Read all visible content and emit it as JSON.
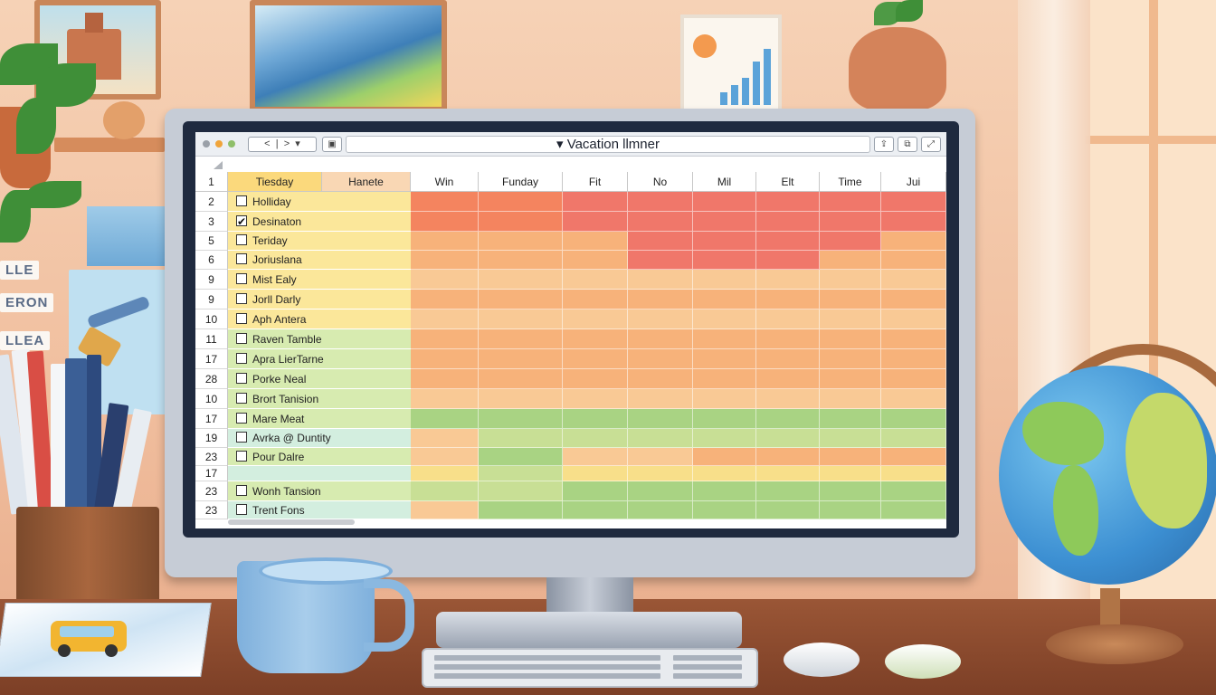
{
  "app": {
    "title": "Vacation llmner",
    "title_prefix": "▾"
  },
  "toolbar": {
    "back": "<",
    "divider": "|",
    "forward": ">",
    "dropdown": "▾",
    "sidebar_icon": "▣",
    "share_icon": "⇪",
    "copy_icon": "⧉",
    "expand_icon": "⤢"
  },
  "columns": {
    "corner": "1",
    "col_a": "Tiesday",
    "col_b": "Hanete",
    "days": [
      "Win",
      "Funday",
      "Fit",
      "No",
      "Mil",
      "Elt",
      "Time",
      "Jui"
    ]
  },
  "rows": [
    {
      "num": "2",
      "label": "Holliday",
      "checked": false
    },
    {
      "num": "3",
      "label": "Desinaton",
      "checked": true
    },
    {
      "num": "5",
      "label": "Teriday",
      "checked": false
    },
    {
      "num": "6",
      "label": "Joriuslana",
      "checked": false
    },
    {
      "num": "9",
      "label": "Mist Ealy",
      "checked": false
    },
    {
      "num": "9",
      "label": "Jorll Darly",
      "checked": false
    },
    {
      "num": "10",
      "label": "Aph Antera",
      "checked": false
    },
    {
      "num": "11",
      "label": "Raven Tamble",
      "checked": false
    },
    {
      "num": "17",
      "label": "Apra LierTarne",
      "checked": false
    },
    {
      "num": "28",
      "label": "Porke Neal",
      "checked": false
    },
    {
      "num": "10",
      "label": "Brort Tanision",
      "checked": false
    },
    {
      "num": "17",
      "label": "Mare Meat",
      "checked": false
    },
    {
      "num": "19",
      "label": "Avrka @ Duntity",
      "checked": false
    },
    {
      "num": "23",
      "label": "Pour Dalre",
      "checked": false
    },
    {
      "num": "17",
      "label": "",
      "checked": null
    },
    {
      "num": "23",
      "label": "Wonh Tansion",
      "checked": false
    },
    {
      "num": "23",
      "label": "Trent Fons",
      "checked": false
    }
  ],
  "wall_notes": [
    "LLE",
    "ERON",
    "LLEA"
  ],
  "colors": {
    "red": "#f0776a",
    "red_orange": "#f4845f",
    "orange": "#f7b27a",
    "light_orange": "#f9c995",
    "yellow": "#f8df8a",
    "light_green": "#c8df95",
    "green": "#a9d383",
    "label_yellow": "#fbe79a",
    "label_green": "#d7ebb0",
    "label_mint": "#d3eedf",
    "header_yellow": "#fbd97c",
    "header_peach": "#f9d7b4"
  },
  "row_colors": [
    [
      "red_orange",
      "red_orange",
      "red",
      "red",
      "red",
      "red",
      "red",
      "red"
    ],
    [
      "red_orange",
      "red_orange",
      "red",
      "red",
      "red",
      "red",
      "red",
      "red"
    ],
    [
      "orange",
      "orange",
      "orange",
      "red",
      "red",
      "red",
      "red",
      "orange"
    ],
    [
      "orange",
      "orange",
      "orange",
      "red",
      "red",
      "red",
      "orange",
      "orange"
    ],
    [
      "light_orange",
      "light_orange",
      "light_orange",
      "light_orange",
      "light_orange",
      "light_orange",
      "light_orange",
      "light_orange"
    ],
    [
      "orange",
      "orange",
      "orange",
      "orange",
      "orange",
      "orange",
      "orange",
      "orange"
    ],
    [
      "light_orange",
      "light_orange",
      "light_orange",
      "light_orange",
      "light_orange",
      "light_orange",
      "light_orange",
      "light_orange"
    ],
    [
      "orange",
      "orange",
      "orange",
      "orange",
      "orange",
      "orange",
      "orange",
      "orange"
    ],
    [
      "orange",
      "orange",
      "orange",
      "orange",
      "orange",
      "orange",
      "orange",
      "orange"
    ],
    [
      "orange",
      "orange",
      "orange",
      "orange",
      "orange",
      "orange",
      "orange",
      "orange"
    ],
    [
      "light_orange",
      "light_orange",
      "light_orange",
      "light_orange",
      "light_orange",
      "light_orange",
      "light_orange",
      "light_orange"
    ],
    [
      "green",
      "green",
      "green",
      "green",
      "green",
      "green",
      "green",
      "green"
    ],
    [
      "light_orange",
      "light_green",
      "light_green",
      "light_green",
      "light_green",
      "light_green",
      "light_green",
      "light_green"
    ],
    [
      "light_orange",
      "green",
      "light_orange",
      "light_orange",
      "orange",
      "orange",
      "orange",
      "orange"
    ],
    [
      "yellow",
      "light_green",
      "yellow",
      "yellow",
      "yellow",
      "yellow",
      "yellow",
      "yellow"
    ],
    [
      "light_green",
      "light_green",
      "green",
      "green",
      "green",
      "green",
      "green",
      "green"
    ],
    [
      "light_orange",
      "green",
      "green",
      "green",
      "green",
      "green",
      "green",
      "green"
    ]
  ],
  "label_colors": [
    "label_yellow",
    "label_yellow",
    "label_yellow",
    "label_yellow",
    "label_yellow",
    "label_yellow",
    "label_yellow",
    "label_green",
    "label_green",
    "label_green",
    "label_green",
    "label_green",
    "label_mint",
    "label_green",
    "label_mint",
    "label_green",
    "label_mint"
  ]
}
